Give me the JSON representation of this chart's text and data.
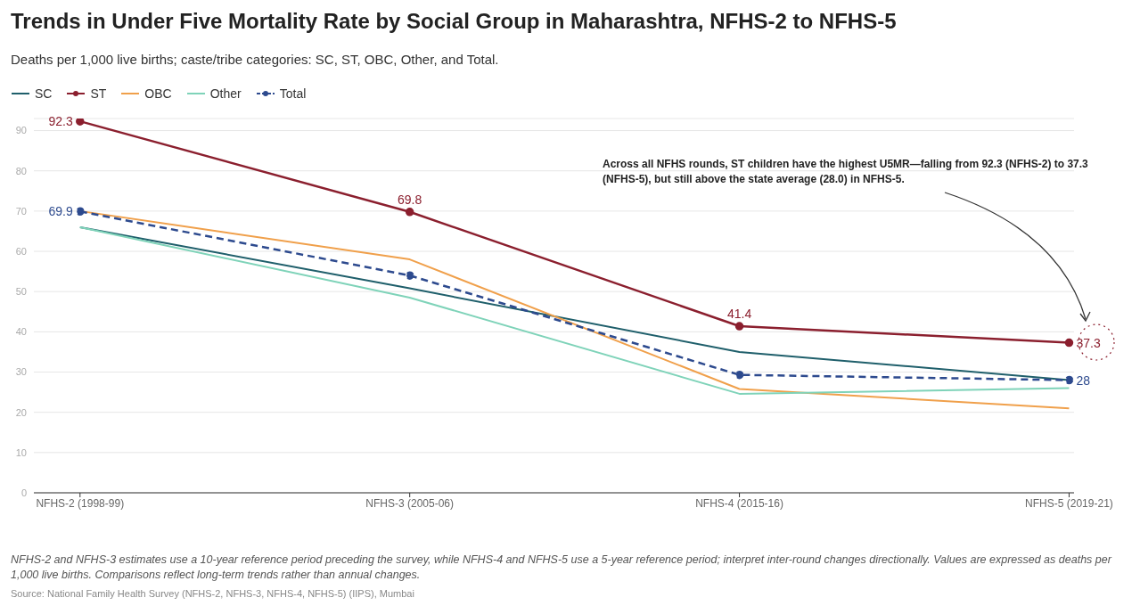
{
  "chart_data": {
    "type": "line",
    "title": "Trends in Under Five Mortality Rate by Social Group in Maharashtra, NFHS-2 to NFHS-5",
    "subtitle": "Deaths per 1,000 live births; caste/tribe categories: SC, ST, OBC, Other, and Total.",
    "categories": [
      "NFHS-2 (1998-99)",
      "NFHS-3 (2005-06)",
      "NFHS-4 (2015-16)",
      "NFHS-5 (2019-21)"
    ],
    "series": [
      {
        "name": "SC",
        "color": "#1f5f6b",
        "values": [
          66,
          50.8,
          35,
          28
        ],
        "marker": "none",
        "line_style": "solid"
      },
      {
        "name": "ST",
        "color": "#8b1f2e",
        "values": [
          92.3,
          69.8,
          41.4,
          37.3
        ],
        "marker": "circle",
        "line_style": "solid",
        "value_labels": [
          "92.3",
          "69.8",
          "41.4",
          "37.3"
        ]
      },
      {
        "name": "OBC",
        "color": "#f0a04b",
        "values": [
          70,
          58,
          25.8,
          21
        ],
        "marker": "none",
        "line_style": "solid"
      },
      {
        "name": "Other",
        "color": "#7fd3b9",
        "values": [
          66,
          48.5,
          24.6,
          26
        ],
        "marker": "none",
        "line_style": "solid"
      },
      {
        "name": "Total",
        "color": "#2d4a8e",
        "values": [
          69.9,
          54,
          29.3,
          28
        ],
        "marker": "circle",
        "line_style": "dashed",
        "value_labels": [
          "69.9",
          null,
          null,
          "28"
        ]
      }
    ],
    "ylim": [
      0,
      93
    ],
    "yticks": [
      0,
      10,
      20,
      30,
      40,
      50,
      60,
      70,
      80,
      90
    ],
    "grid": "y",
    "legend": "top left",
    "annotations": [
      "Across all NFHS rounds, ST children have the highest U5MR—falling from 92.3 (NFHS-2) to 37.3 (NFHS-5), but still above the state average (28.0) in NFHS-5.",
      "NFHS-2 and NFHS-3 estimates use a 10-year reference period preceding the survey, while NFHS-4 and NFHS-5 use a 5-year reference period; interpret inter-round changes directionally. Values are expressed as deaths per 1,000 live births. Comparisons reflect long-term trends rather than annual changes.",
      "Source: National Family Health Survey (NFHS-2, NFHS-3, NFHS-4, NFHS-5) (IIPS), Mumbai"
    ]
  }
}
